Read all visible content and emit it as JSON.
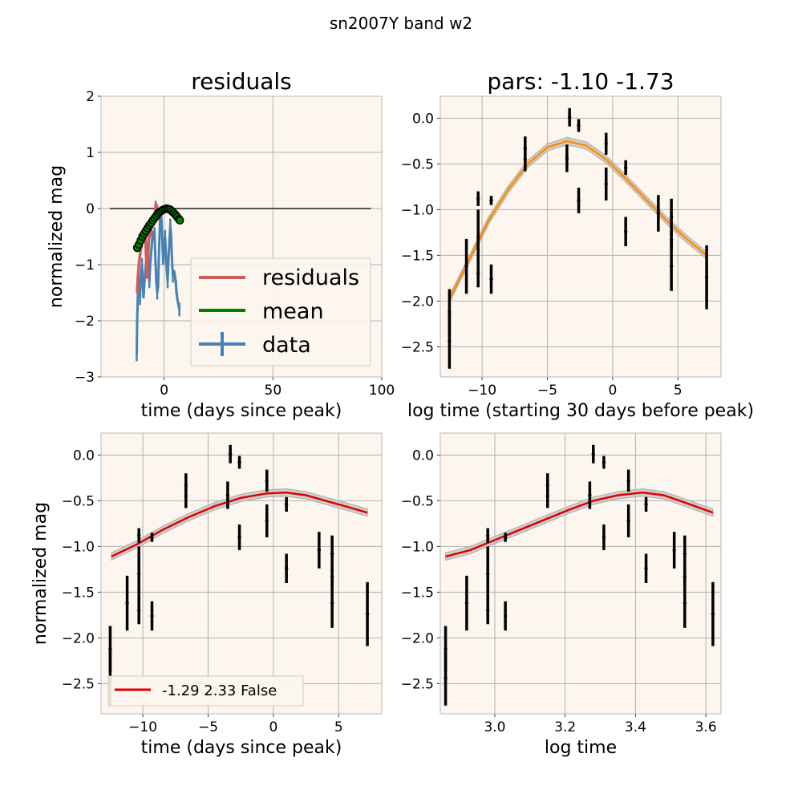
{
  "figure": {
    "suptitle": "sn2007Y band w2",
    "colors": {
      "axes_bg": "#fdf6ee",
      "grid": "#b0b0b0",
      "residuals": "#cd5c5c",
      "mean": "#008000",
      "data": "#4682b4",
      "fit_orange": "#ff8c00",
      "fit_red": "#e00000",
      "band": "#c8c8c8",
      "errorbar": "#000000",
      "zero_line": "#555555"
    }
  },
  "chart_data": [
    {
      "id": "residuals",
      "type": "line",
      "title": "residuals",
      "xlabel": "time (days since peak)",
      "ylabel": "normalized mag",
      "xlim": [
        -29,
        100
      ],
      "ylim": [
        -3,
        2
      ],
      "xticks": [
        0,
        50,
        100
      ],
      "yticks": [
        -3,
        -2,
        -1,
        0,
        1,
        2
      ],
      "xtick_labels": [
        "0",
        "50",
        "100"
      ],
      "ytick_labels": [
        "−3",
        "−2",
        "−1",
        "0",
        "1",
        "2"
      ],
      "grid": true,
      "legend_position": "lower-right",
      "zero_line": {
        "x": [
          -25,
          95
        ],
        "y": 0
      },
      "series": [
        {
          "name": "residuals",
          "x": [
            -12.4,
            -12.0,
            -11.5,
            -11.0,
            -10.6,
            -10.2,
            -9.8,
            -9.4,
            -9.0,
            -8.6,
            -8.2,
            -7.8,
            -7.2,
            -6.8,
            -6.3,
            -5.9,
            -5.5,
            -5.1,
            -4.7,
            -4.2,
            -3.8,
            -3.4,
            -3.0
          ],
          "y": [
            -1.5,
            -1.2,
            -0.95,
            -0.8,
            -0.7,
            -0.6,
            -0.5,
            -0.35,
            -0.6,
            -0.45,
            -0.9,
            -1.25,
            -0.7,
            -0.4,
            -0.5,
            -0.35,
            -0.3,
            -0.2,
            -0.15,
            -0.1,
            0.08,
            0.05,
            -0.05
          ]
        },
        {
          "name": "mean",
          "x": [
            -12.4,
            -11.8,
            -11.2,
            -10.6,
            -10.0,
            -9.4,
            -8.8,
            -8.2,
            -7.6,
            -7.0,
            -6.4,
            -5.8,
            -5.2,
            -4.6,
            -4.0,
            -3.4,
            -2.8,
            -2.2,
            -1.6,
            -1.0,
            -0.4,
            0.2,
            0.8,
            1.4,
            2.0,
            2.6,
            3.2,
            3.8,
            4.4,
            5.0,
            5.6,
            6.2,
            6.8,
            7.2
          ],
          "y": [
            -0.7,
            -0.65,
            -0.6,
            -0.55,
            -0.5,
            -0.46,
            -0.42,
            -0.38,
            -0.34,
            -0.3,
            -0.27,
            -0.24,
            -0.21,
            -0.18,
            -0.15,
            -0.12,
            -0.09,
            -0.07,
            -0.05,
            -0.03,
            -0.02,
            -0.01,
            0.0,
            0.0,
            -0.01,
            -0.02,
            -0.04,
            -0.06,
            -0.08,
            -0.1,
            -0.13,
            -0.16,
            -0.19,
            -0.21
          ],
          "marker_x": [
            -12.4,
            -11.6,
            -10.8,
            -10.0,
            -9.2,
            -8.4,
            -7.6,
            -6.8,
            -6.0,
            -5.2,
            -4.4,
            -3.6,
            -2.8,
            -2.0,
            -1.2,
            -0.4,
            0.4,
            1.2,
            2.0,
            2.8,
            3.6,
            4.4,
            5.2,
            6.0,
            6.8,
            7.2
          ],
          "marker_y": [
            -0.7,
            -0.64,
            -0.57,
            -0.5,
            -0.45,
            -0.4,
            -0.35,
            -0.3,
            -0.26,
            -0.21,
            -0.17,
            -0.13,
            -0.09,
            -0.06,
            -0.04,
            -0.02,
            -0.01,
            0.0,
            -0.01,
            -0.02,
            -0.05,
            -0.08,
            -0.11,
            -0.15,
            -0.19,
            -0.21
          ]
        },
        {
          "name": "data",
          "x": [
            -12.6,
            -12.4,
            -12.2,
            -12.0,
            -11.7,
            -11.4,
            -11.1,
            -10.8,
            -10.5,
            -10.2,
            -9.9,
            -9.5,
            -9.2,
            -8.8,
            -8.4,
            -8.0,
            -7.6,
            -7.2,
            -6.8,
            -6.4,
            -6.0,
            -5.6,
            -5.2,
            -4.8,
            -4.4,
            -4.0,
            -3.6,
            -3.2,
            -2.8,
            -2.4,
            -2.0,
            -1.6,
            -1.2,
            -0.8,
            -0.4,
            0.0,
            0.4,
            0.8,
            1.2,
            1.6,
            2.0,
            2.4,
            2.8,
            3.2,
            3.6,
            4.0,
            4.5,
            5.0,
            5.5,
            6.0,
            6.5,
            7.0
          ],
          "y": [
            -2.6,
            -2.0,
            -1.7,
            -1.4,
            -1.3,
            -1.2,
            -1.6,
            -1.3,
            -1.1,
            -1.0,
            -1.2,
            -1.6,
            -1.4,
            -1.2,
            -1.0,
            -0.8,
            -0.7,
            -1.1,
            -1.3,
            -1.0,
            -0.8,
            -0.6,
            -0.5,
            -0.4,
            -0.45,
            -0.9,
            -1.3,
            -1.5,
            -1.4,
            -0.8,
            -0.3,
            -0.05,
            -0.2,
            -0.6,
            -1.0,
            -0.7,
            -0.5,
            -0.8,
            -1.1,
            -1.3,
            -0.9,
            -0.6,
            -0.3,
            -0.5,
            -0.9,
            -1.2,
            -1.1,
            -1.2,
            -1.4,
            -1.6,
            -1.7,
            -1.8
          ]
        }
      ]
    },
    {
      "id": "pars",
      "type": "line",
      "title": "pars: -1.10 -1.73",
      "xlabel": "log time (starting 30 days before peak)",
      "ylabel": "",
      "xlim": [
        -13.2,
        8.3
      ],
      "ylim": [
        -2.83,
        0.24
      ],
      "xticks": [
        -10,
        -5,
        0,
        5
      ],
      "yticks": [
        -2.5,
        -2.0,
        -1.5,
        -1.0,
        -0.5,
        0.0
      ],
      "xtick_labels": [
        "−10",
        "−5",
        "0",
        "5"
      ],
      "ytick_labels": [
        "−2.5",
        "−2.0",
        "−1.5",
        "−1.0",
        "−0.5",
        "0.0"
      ],
      "grid": true,
      "fit": {
        "x": [
          -12.4,
          -11.0,
          -9.5,
          -8.0,
          -6.5,
          -5.0,
          -3.5,
          -2.0,
          -0.5,
          1.0,
          2.5,
          4.0,
          5.5,
          7.2
        ],
        "y": [
          -1.95,
          -1.55,
          -1.12,
          -0.78,
          -0.5,
          -0.32,
          -0.25,
          -0.3,
          -0.45,
          -0.66,
          -0.88,
          -1.1,
          -1.3,
          -1.5
        ],
        "band": 0.04
      }
    },
    {
      "id": "time_fit",
      "type": "line",
      "title": "",
      "xlabel": "time (days since peak)",
      "ylabel": "normalized mag",
      "xlim": [
        -13.2,
        8.3
      ],
      "ylim": [
        -2.83,
        0.24
      ],
      "xticks": [
        -10,
        -5,
        0,
        5
      ],
      "yticks": [
        -2.5,
        -2.0,
        -1.5,
        -1.0,
        -0.5,
        0.0
      ],
      "xtick_labels": [
        "−10",
        "−5",
        "0",
        "5"
      ],
      "ytick_labels": [
        "−2.5",
        "−2.0",
        "−1.5",
        "−1.0",
        "−0.5",
        "0.0"
      ],
      "grid": true,
      "legend_position": "lower-left",
      "legend_label": "-1.29 2.33 False",
      "fit": {
        "x": [
          -12.4,
          -10.5,
          -8.5,
          -6.5,
          -4.5,
          -2.5,
          -0.5,
          1.0,
          2.5,
          4.0,
          5.5,
          7.2
        ],
        "y": [
          -1.11,
          -0.98,
          -0.82,
          -0.68,
          -0.56,
          -0.47,
          -0.42,
          -0.41,
          -0.44,
          -0.5,
          -0.56,
          -0.63
        ],
        "band": 0.04
      }
    },
    {
      "id": "log_fit",
      "type": "line",
      "title": "",
      "xlabel": "log time",
      "ylabel": "",
      "xlim": [
        2.845,
        3.643
      ],
      "ylim": [
        -2.83,
        0.24
      ],
      "xticks": [
        3.0,
        3.2,
        3.4,
        3.6
      ],
      "yticks": [
        -2.5,
        -2.0,
        -1.5,
        -1.0,
        -0.5,
        0.0
      ],
      "xtick_labels": [
        "3.0",
        "3.2",
        "3.4",
        "3.6"
      ],
      "ytick_labels": [
        "−2.5",
        "−2.0",
        "−1.5",
        "−1.0",
        "−0.5",
        "0.0"
      ],
      "grid": true,
      "fit": {
        "x": [
          2.86,
          2.93,
          3.0,
          3.07,
          3.14,
          3.21,
          3.28,
          3.35,
          3.42,
          3.48,
          3.54,
          3.62
        ],
        "y": [
          -1.11,
          -1.04,
          -0.93,
          -0.82,
          -0.71,
          -0.6,
          -0.5,
          -0.44,
          -0.41,
          -0.44,
          -0.52,
          -0.63
        ],
        "band": 0.04
      }
    }
  ],
  "observations": {
    "t": [
      -12.5,
      -12.5,
      -11.2,
      -10.3,
      -10.3,
      -10.3,
      -9.3,
      -9.3,
      -6.7,
      -6.7,
      -3.5,
      -3.3,
      -2.6,
      -2.6,
      -0.5,
      -0.5,
      1.0,
      1.0,
      3.5,
      4.5,
      4.5,
      4.5,
      7.2
    ],
    "logt": [
      2.86,
      2.86,
      2.92,
      2.98,
      2.98,
      2.98,
      3.03,
      3.03,
      3.15,
      3.15,
      3.27,
      3.28,
      3.31,
      3.31,
      3.38,
      3.38,
      3.43,
      3.43,
      3.51,
      3.54,
      3.54,
      3.54,
      3.62
    ],
    "y": [
      -2.12,
      -2.44,
      -1.62,
      -1.3,
      -1.7,
      -0.88,
      -1.76,
      -0.9,
      -0.33,
      -0.45,
      -0.44,
      0.01,
      -0.08,
      -0.9,
      -0.28,
      -0.72,
      -0.54,
      -1.24,
      -1.04,
      -1.62,
      -1.33,
      -1.08,
      -1.74
    ],
    "err": [
      0.25,
      0.3,
      0.3,
      0.3,
      0.15,
      0.08,
      0.16,
      0.05,
      0.13,
      0.13,
      0.15,
      0.1,
      0.07,
      0.14,
      0.12,
      0.18,
      0.08,
      0.16,
      0.2,
      0.27,
      0.1,
      0.2,
      0.35
    ]
  }
}
